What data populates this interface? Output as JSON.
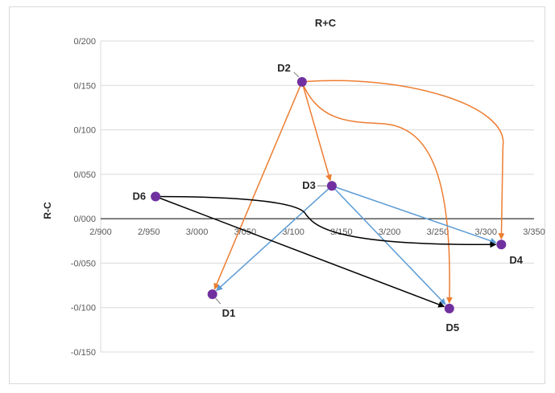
{
  "chart_data": {
    "type": "scatter",
    "title": "R+C",
    "xlabel": "",
    "ylabel": "R-C",
    "xlim": [
      2.9,
      3.35
    ],
    "ylim": [
      -0.15,
      0.2
    ],
    "x_ticks": [
      2.9,
      2.95,
      3.0,
      3.05,
      3.1,
      3.15,
      3.2,
      3.25,
      3.3,
      3.35
    ],
    "y_ticks": [
      -0.15,
      -0.1,
      -0.05,
      0.0,
      0.05,
      0.1,
      0.15,
      0.2
    ],
    "x_tick_labels": [
      "2/900",
      "2/950",
      "3/000",
      "3/050",
      "3/100",
      "3/150",
      "3/200",
      "3/250",
      "3/300",
      "3/350"
    ],
    "y_tick_labels": [
      "-0/150",
      "-0/100",
      "-0/050",
      "0/000",
      "0/050",
      "0/100",
      "0/150",
      "0/200"
    ],
    "grid": "horizontal",
    "marker_color": "#7030a0",
    "points": [
      {
        "label": "D1",
        "x": 3.016,
        "y": -0.085
      },
      {
        "label": "D2",
        "x": 3.109,
        "y": 0.154
      },
      {
        "label": "D3",
        "x": 3.14,
        "y": 0.037
      },
      {
        "label": "D4",
        "x": 3.316,
        "y": -0.029
      },
      {
        "label": "D5",
        "x": 3.262,
        "y": -0.101
      },
      {
        "label": "D6",
        "x": 2.957,
        "y": 0.025
      }
    ],
    "arrows": [
      {
        "from": "D2",
        "to": "D1",
        "color": "#ed7d31"
      },
      {
        "from": "D2",
        "to": "D3",
        "color": "#ed7d31"
      },
      {
        "from": "D2",
        "to": "D5",
        "color": "#ed7d31"
      },
      {
        "from": "D2",
        "to": "D4",
        "color": "#ed7d31"
      },
      {
        "from": "D3",
        "to": "D1",
        "color": "#5b9bd5"
      },
      {
        "from": "D3",
        "to": "D5",
        "color": "#5b9bd5"
      },
      {
        "from": "D3",
        "to": "D4",
        "color": "#5b9bd5"
      },
      {
        "from": "D6",
        "to": "D5",
        "color": "#000000"
      },
      {
        "from": "D6",
        "to": "D4",
        "color": "#000000"
      }
    ]
  }
}
